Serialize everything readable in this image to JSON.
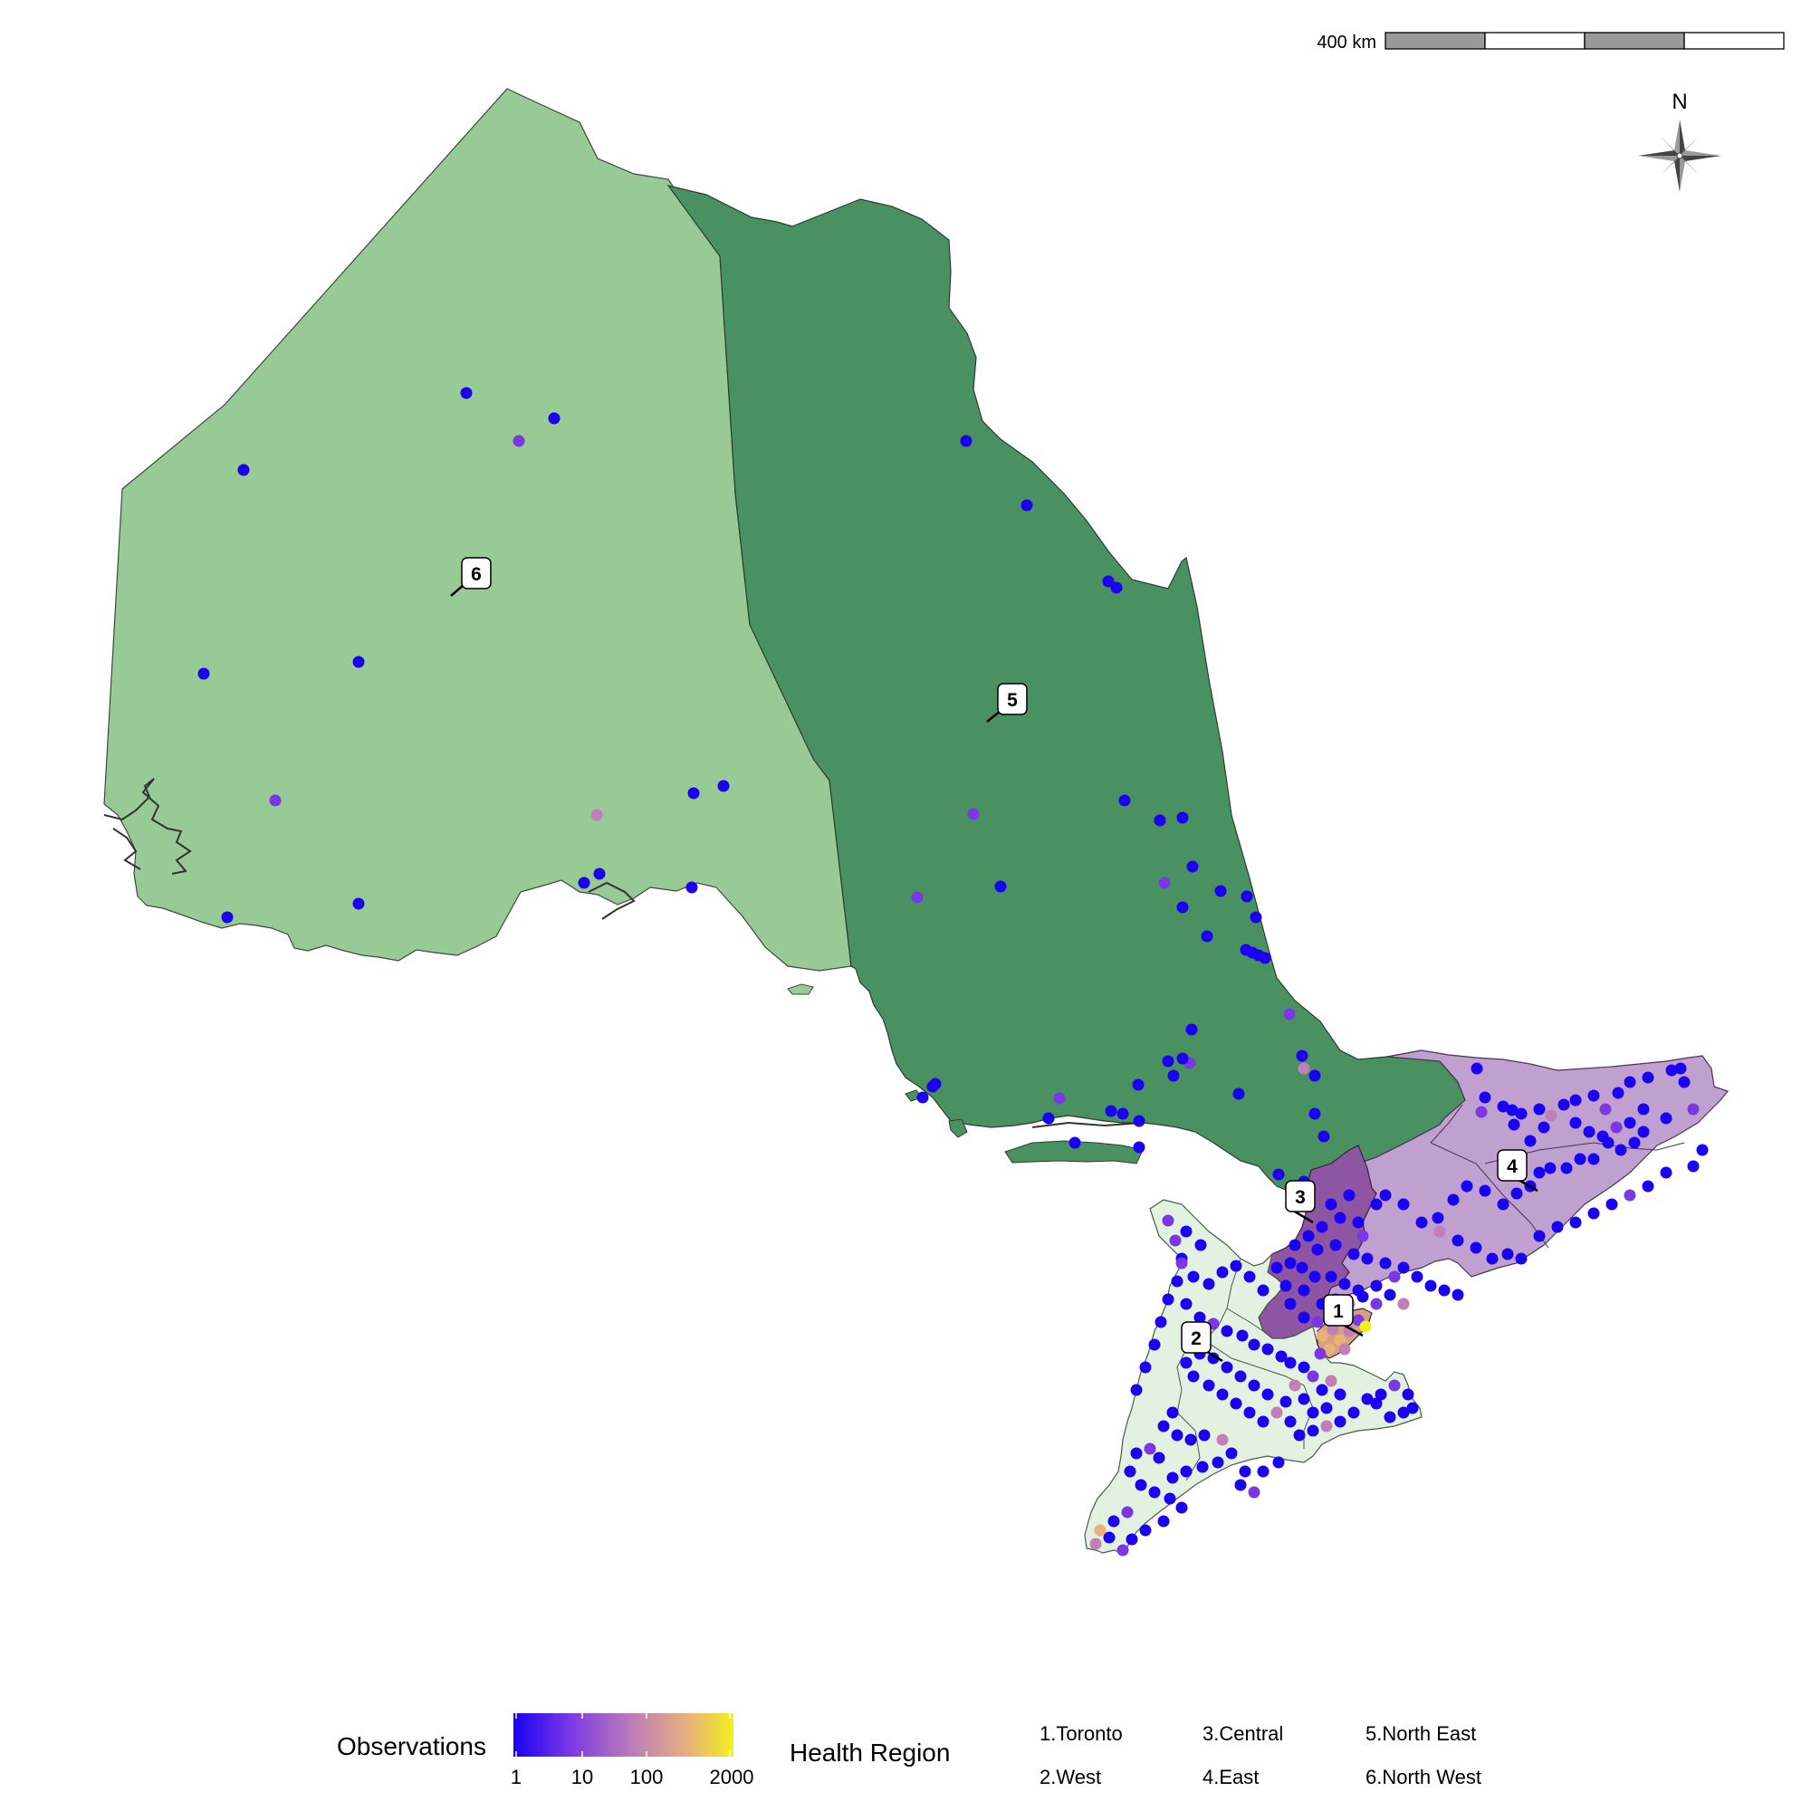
{
  "scale_bar": {
    "label": "400 km"
  },
  "north_arrow": {
    "label": "N",
    "icon": "compass-rose-icon"
  },
  "regions": [
    {
      "number": "1",
      "name": "Toronto",
      "color": "#D9A07E"
    },
    {
      "number": "2",
      "name": "West",
      "color": "#E2F1E0"
    },
    {
      "number": "3",
      "name": "Central",
      "color": "#8E55A2"
    },
    {
      "number": "4",
      "name": "East",
      "color": "#BFA0CF"
    },
    {
      "number": "5",
      "name": "North East",
      "color": "#4A9161"
    },
    {
      "number": "6",
      "name": "North West",
      "color": "#98CA95"
    }
  ],
  "legend": {
    "observations_title": "Observations",
    "health_region_title": "Health Region",
    "colorbar_ticks": [
      "1",
      "10",
      "100",
      "2000"
    ],
    "colorbar_colors": [
      "#1A00F5",
      "#7A37E4",
      "#C07FB7",
      "#E8B27A",
      "#F5EE1E"
    ],
    "entries": [
      "1.Toronto",
      "2.West",
      "3.Central",
      "4.East",
      "5.North East",
      "6.North West"
    ]
  }
}
